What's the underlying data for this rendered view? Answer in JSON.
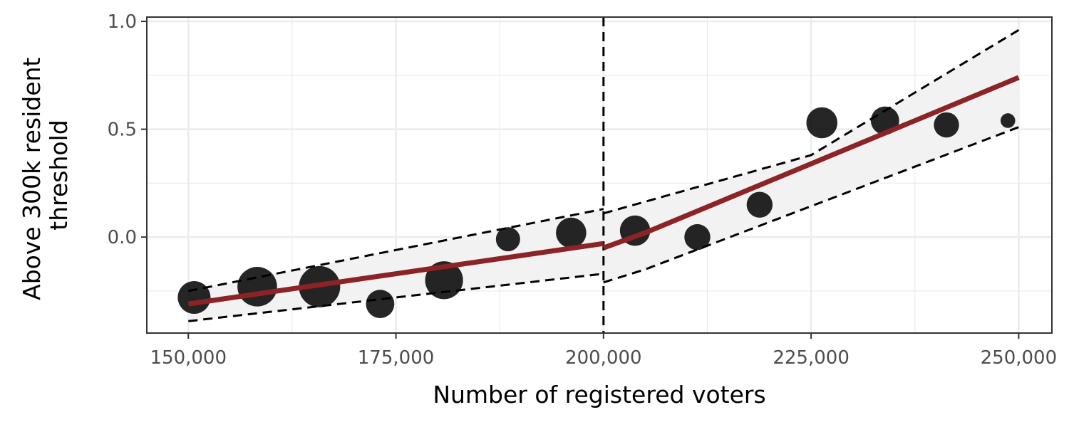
{
  "chart_data": {
    "type": "scatter",
    "xlabel": "Number of registered voters",
    "ylabel_lines": [
      "Above 300k resident",
      "threshold"
    ],
    "xlim": [
      145000,
      254000
    ],
    "ylim": [
      -0.445,
      1.02
    ],
    "x_ticks": [
      {
        "value": 150000,
        "label": "150,000"
      },
      {
        "value": 175000,
        "label": "175,000"
      },
      {
        "value": 200000,
        "label": "200,000"
      },
      {
        "value": 225000,
        "label": "225,000"
      },
      {
        "value": 250000,
        "label": "250,000"
      }
    ],
    "y_ticks": [
      {
        "value": 0.0,
        "label": "0.0"
      },
      {
        "value": 0.5,
        "label": "0.5"
      },
      {
        "value": 1.0,
        "label": "1.0"
      }
    ],
    "cutoff_x": 200000,
    "grid": true,
    "legend": "none",
    "points": [
      {
        "x": 150700,
        "y": -0.28,
        "size": 0.75
      },
      {
        "x": 158300,
        "y": -0.23,
        "size": 0.95
      },
      {
        "x": 165800,
        "y": -0.23,
        "size": 1.0
      },
      {
        "x": 173100,
        "y": -0.31,
        "size": 0.62
      },
      {
        "x": 180800,
        "y": -0.2,
        "size": 0.9
      },
      {
        "x": 188500,
        "y": -0.01,
        "size": 0.5
      },
      {
        "x": 196100,
        "y": 0.02,
        "size": 0.68
      },
      {
        "x": 203800,
        "y": 0.03,
        "size": 0.68
      },
      {
        "x": 211300,
        "y": 0.0,
        "size": 0.55
      },
      {
        "x": 218800,
        "y": 0.15,
        "size": 0.55
      },
      {
        "x": 226300,
        "y": 0.53,
        "size": 0.7
      },
      {
        "x": 233900,
        "y": 0.54,
        "size": 0.62
      },
      {
        "x": 241300,
        "y": 0.52,
        "size": 0.53
      },
      {
        "x": 248700,
        "y": 0.54,
        "size": 0.22
      }
    ],
    "fit_left": [
      {
        "x": 150000,
        "y": -0.31
      },
      {
        "x": 200000,
        "y": -0.03
      }
    ],
    "fit_right": [
      {
        "x": 200000,
        "y": -0.05
      },
      {
        "x": 205000,
        "y": 0.02
      },
      {
        "x": 250000,
        "y": 0.74
      }
    ],
    "ci_left_upper": [
      {
        "x": 150000,
        "y": -0.25
      },
      {
        "x": 200000,
        "y": 0.13
      }
    ],
    "ci_left_lower": [
      {
        "x": 150000,
        "y": -0.39
      },
      {
        "x": 200000,
        "y": -0.17
      }
    ],
    "ci_right_upper": [
      {
        "x": 200000,
        "y": 0.11
      },
      {
        "x": 225000,
        "y": 0.38
      },
      {
        "x": 250000,
        "y": 0.96
      }
    ],
    "ci_right_lower": [
      {
        "x": 200000,
        "y": -0.21
      },
      {
        "x": 205000,
        "y": -0.15
      },
      {
        "x": 250000,
        "y": 0.51
      }
    ],
    "colors": {
      "fit_line": "#8b2327",
      "points": "#000000",
      "ci_fill": "#f2f2f2",
      "ci_line": "#000000",
      "panel_border": "#333333",
      "grid_major": "#ebebeb",
      "grid_minor": "#f5f5f5"
    }
  }
}
